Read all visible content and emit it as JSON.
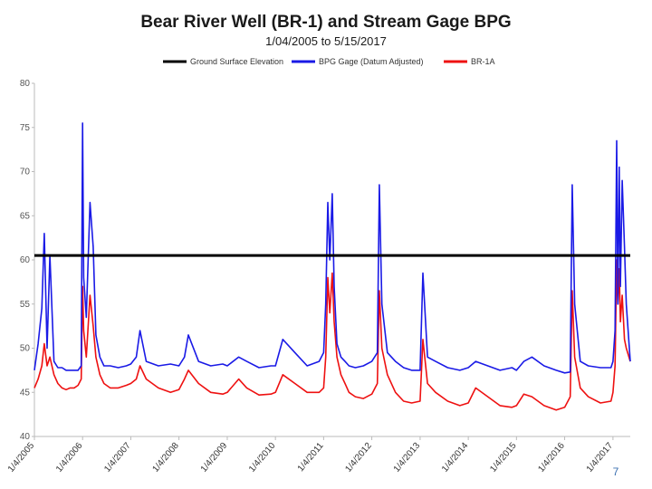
{
  "chart_data": {
    "type": "line",
    "title": "Bear River Well (BR-1) and Stream Gage BPG",
    "subtitle": "1/04/2005 to 5/15/2017",
    "xlabel": "",
    "ylabel": "",
    "ylim": [
      40,
      80
    ],
    "yticks": [
      "40",
      "45",
      "50",
      "55",
      "60",
      "65",
      "70",
      "75",
      "80"
    ],
    "xlim": [
      "2005-01-04",
      "2017-05-15"
    ],
    "xticks": [
      "1/4/2005",
      "1/4/2006",
      "1/4/2007",
      "1/4/2008",
      "1/4/2009",
      "1/4/2010",
      "1/4/2011",
      "1/4/2012",
      "1/4/2013",
      "1/4/2014",
      "1/4/2015",
      "1/4/2016",
      "1/4/2017"
    ],
    "grid": false,
    "legend_position": "top",
    "series": [
      {
        "name": "Ground Surface Elevation",
        "color": "#000000",
        "x": [
          "2005-01-04",
          "2017-05-15"
        ],
        "y": [
          60.5,
          60.5
        ]
      },
      {
        "name": "BPG Gage (Datum Adjusted)",
        "color": "#1a1ae6",
        "x": [
          "2005-01-04",
          "2005-02-01",
          "2005-03-01",
          "2005-03-20",
          "2005-04-10",
          "2005-05-01",
          "2005-06-01",
          "2005-07-01",
          "2005-08-01",
          "2005-09-01",
          "2005-10-01",
          "2005-11-01",
          "2005-12-01",
          "2005-12-25",
          "2006-01-04",
          "2006-01-12",
          "2006-02-01",
          "2006-03-01",
          "2006-03-25",
          "2006-04-15",
          "2006-05-15",
          "2006-06-15",
          "2006-08-01",
          "2006-10-01",
          "2006-12-01",
          "2007-01-04",
          "2007-02-15",
          "2007-03-15",
          "2007-05-01",
          "2007-08-01",
          "2007-11-01",
          "2008-01-04",
          "2008-02-15",
          "2008-03-15",
          "2008-06-01",
          "2008-09-01",
          "2008-12-01",
          "2009-01-04",
          "2009-04-01",
          "2009-06-01",
          "2009-09-01",
          "2009-12-01",
          "2010-01-04",
          "2010-03-01",
          "2010-06-01",
          "2010-09-01",
          "2010-12-01",
          "2011-01-04",
          "2011-01-20",
          "2011-02-05",
          "2011-02-20",
          "2011-03-10",
          "2011-03-25",
          "2011-04-15",
          "2011-05-15",
          "2011-06-15",
          "2011-07-15",
          "2011-09-01",
          "2011-11-01",
          "2012-01-04",
          "2012-02-15",
          "2012-03-01",
          "2012-03-20",
          "2012-05-01",
          "2012-07-01",
          "2012-09-01",
          "2012-11-01",
          "2013-01-04",
          "2013-01-25",
          "2013-03-01",
          "2013-05-01",
          "2013-08-01",
          "2013-11-01",
          "2014-01-04",
          "2014-03-01",
          "2014-06-01",
          "2014-09-01",
          "2014-12-01",
          "2015-01-04",
          "2015-03-01",
          "2015-05-01",
          "2015-08-01",
          "2015-11-01",
          "2016-01-04",
          "2016-02-15",
          "2016-03-01",
          "2016-03-20",
          "2016-05-01",
          "2016-07-01",
          "2016-10-01",
          "2016-12-20",
          "2017-01-04",
          "2017-01-20",
          "2017-02-01",
          "2017-02-10",
          "2017-02-20",
          "2017-03-01",
          "2017-03-15",
          "2017-04-01",
          "2017-04-15",
          "2017-05-15"
        ],
        "y": [
          47.5,
          50.5,
          54.5,
          63.0,
          50.0,
          60.5,
          48.5,
          47.8,
          47.8,
          47.5,
          47.5,
          47.5,
          47.5,
          48.0,
          75.5,
          58.0,
          53.5,
          66.5,
          61.5,
          51.5,
          49.0,
          48.0,
          48.0,
          47.8,
          48.0,
          48.2,
          49.0,
          52.0,
          48.5,
          48.0,
          48.2,
          48.0,
          49.0,
          51.5,
          48.5,
          48.0,
          48.2,
          48.0,
          49.0,
          48.5,
          47.8,
          48.0,
          48.0,
          51.0,
          49.5,
          48.0,
          48.5,
          49.5,
          55.0,
          66.5,
          60.0,
          67.5,
          57.0,
          50.5,
          49.0,
          48.5,
          48.0,
          47.8,
          48.0,
          48.5,
          49.5,
          68.5,
          55.0,
          49.5,
          48.5,
          47.8,
          47.5,
          47.5,
          58.5,
          49.0,
          48.5,
          47.8,
          47.5,
          47.8,
          48.5,
          48.0,
          47.5,
          47.8,
          47.5,
          48.5,
          49.0,
          48.0,
          47.5,
          47.2,
          47.3,
          68.5,
          55.0,
          48.5,
          48.0,
          47.8,
          47.8,
          48.5,
          52.0,
          73.5,
          55.0,
          70.5,
          57.0,
          69.0,
          61.5,
          55.0,
          48.5
        ]
      },
      {
        "name": "BR-1A",
        "color": "#ee1111",
        "x": [
          "2005-01-04",
          "2005-02-01",
          "2005-03-01",
          "2005-03-20",
          "2005-04-10",
          "2005-05-01",
          "2005-06-01",
          "2005-07-01",
          "2005-08-01",
          "2005-09-01",
          "2005-10-01",
          "2005-11-01",
          "2005-12-01",
          "2005-12-25",
          "2006-01-04",
          "2006-01-12",
          "2006-02-01",
          "2006-03-01",
          "2006-03-25",
          "2006-04-15",
          "2006-05-15",
          "2006-06-15",
          "2006-08-01",
          "2006-10-01",
          "2006-12-01",
          "2007-01-04",
          "2007-02-15",
          "2007-03-15",
          "2007-05-01",
          "2007-08-01",
          "2007-11-01",
          "2008-01-04",
          "2008-02-15",
          "2008-03-15",
          "2008-06-01",
          "2008-09-01",
          "2008-12-01",
          "2009-01-04",
          "2009-04-01",
          "2009-06-01",
          "2009-09-01",
          "2009-12-01",
          "2010-01-04",
          "2010-03-01",
          "2010-06-01",
          "2010-09-01",
          "2010-12-01",
          "2011-01-04",
          "2011-01-20",
          "2011-02-05",
          "2011-02-20",
          "2011-03-10",
          "2011-03-25",
          "2011-04-15",
          "2011-05-15",
          "2011-06-15",
          "2011-07-15",
          "2011-09-01",
          "2011-11-01",
          "2012-01-04",
          "2012-02-15",
          "2012-03-01",
          "2012-03-20",
          "2012-05-01",
          "2012-07-01",
          "2012-09-01",
          "2012-11-01",
          "2013-01-04",
          "2013-01-25",
          "2013-03-01",
          "2013-05-01",
          "2013-08-01",
          "2013-11-01",
          "2014-01-04",
          "2014-03-01",
          "2014-06-01",
          "2014-09-01",
          "2014-12-01",
          "2015-01-04",
          "2015-03-01",
          "2015-05-01",
          "2015-08-01",
          "2015-11-01",
          "2016-01-04",
          "2016-02-15",
          "2016-03-01",
          "2016-03-20",
          "2016-05-01",
          "2016-07-01",
          "2016-10-01",
          "2016-12-20",
          "2017-01-04",
          "2017-01-20",
          "2017-02-01",
          "2017-02-10",
          "2017-02-20",
          "2017-03-01",
          "2017-03-15",
          "2017-04-01",
          "2017-04-15",
          "2017-05-15"
        ],
        "y": [
          45.5,
          46.5,
          48.0,
          50.5,
          48.0,
          49.0,
          47.0,
          46.0,
          45.5,
          45.3,
          45.5,
          45.5,
          45.8,
          46.5,
          57.0,
          52.0,
          49.0,
          56.0,
          52.5,
          49.0,
          47.0,
          46.0,
          45.5,
          45.5,
          45.8,
          46.0,
          46.5,
          48.0,
          46.5,
          45.5,
          45.0,
          45.3,
          46.5,
          47.5,
          46.0,
          45.0,
          44.8,
          45.0,
          46.5,
          45.5,
          44.7,
          44.8,
          45.0,
          47.0,
          46.0,
          45.0,
          45.0,
          45.5,
          49.0,
          58.0,
          54.0,
          58.5,
          53.0,
          49.0,
          47.0,
          46.0,
          45.0,
          44.5,
          44.3,
          44.8,
          46.0,
          56.5,
          50.0,
          47.0,
          45.0,
          44.0,
          43.8,
          44.0,
          51.0,
          46.0,
          45.0,
          44.0,
          43.5,
          43.8,
          45.5,
          44.5,
          43.5,
          43.3,
          43.5,
          44.8,
          44.5,
          43.5,
          43.0,
          43.3,
          44.5,
          56.5,
          49.0,
          45.5,
          44.5,
          43.8,
          44.0,
          45.0,
          48.0,
          60.0,
          55.0,
          59.0,
          53.0,
          56.0,
          51.0,
          50.0,
          48.5
        ]
      }
    ]
  },
  "page_number": "7"
}
